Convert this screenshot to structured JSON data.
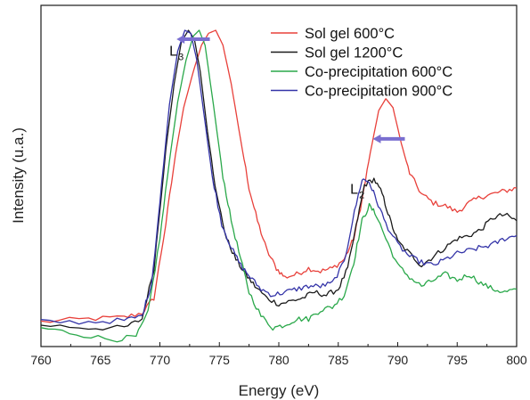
{
  "chart_data": {
    "type": "line",
    "title": "",
    "xlabel": "Energy (eV)",
    "ylabel": "Intensity (u.a.)",
    "xlim": [
      760,
      800
    ],
    "ylim": [
      0,
      1
    ],
    "xticks": [
      760,
      765,
      770,
      775,
      780,
      785,
      790,
      795,
      800
    ],
    "yticks": [],
    "grid": false,
    "legend_position": "top-right",
    "annotations": [
      {
        "label": "L",
        "subscript": "3",
        "x": 770.8,
        "y": 0.915
      },
      {
        "label": "L",
        "subscript": "2",
        "x": 786.0,
        "y": 0.45
      },
      {
        "type": "arrow",
        "direction": "left",
        "x_from": 774.2,
        "x_to": 771.4,
        "y": 0.97,
        "color": "#7a6fd0"
      },
      {
        "type": "arrow",
        "direction": "left",
        "x_from": 790.6,
        "x_to": 787.9,
        "y": 0.635,
        "color": "#7a6fd0"
      }
    ],
    "series": [
      {
        "name": "Sol gel 600°C",
        "color": "#e8403a",
        "x": [
          760,
          764,
          767,
          768.5,
          769.5,
          770.5,
          771.3,
          772,
          772.8,
          773.5,
          774.1,
          774.7,
          775.3,
          776,
          776.8,
          777.5,
          778.2,
          779,
          779.8,
          780.5,
          781.5,
          782.5,
          783.5,
          784.5,
          785.5,
          786.3,
          787,
          787.7,
          788.4,
          789,
          789.6,
          790.3,
          791,
          792,
          793,
          794,
          795,
          796,
          797,
          798,
          799,
          800
        ],
        "y": [
          0.02,
          0.03,
          0.035,
          0.05,
          0.1,
          0.35,
          0.58,
          0.74,
          0.86,
          0.95,
          0.99,
          1.0,
          0.95,
          0.82,
          0.63,
          0.47,
          0.36,
          0.26,
          0.2,
          0.17,
          0.18,
          0.2,
          0.19,
          0.2,
          0.23,
          0.3,
          0.43,
          0.59,
          0.73,
          0.77,
          0.74,
          0.62,
          0.52,
          0.45,
          0.42,
          0.41,
          0.39,
          0.42,
          0.44,
          0.45,
          0.46,
          0.47
        ]
      },
      {
        "name": "Sol gel 1200°C",
        "color": "#1a1a1a",
        "x": [
          760,
          764,
          767,
          768.5,
          769.5,
          770.5,
          771.2,
          771.8,
          772.4,
          772.9,
          773.4,
          774,
          774.8,
          775.6,
          776.4,
          777.2,
          778,
          779,
          780,
          781,
          782,
          783,
          784,
          785,
          785.8,
          786.5,
          787.2,
          788,
          788.7,
          789.3,
          790,
          791,
          792,
          793,
          794,
          795,
          796,
          797,
          798,
          799,
          800
        ],
        "y": [
          0.01,
          0.0,
          0.0,
          0.03,
          0.2,
          0.6,
          0.82,
          0.96,
          1.0,
          0.97,
          0.86,
          0.66,
          0.44,
          0.3,
          0.23,
          0.18,
          0.14,
          0.1,
          0.08,
          0.09,
          0.1,
          0.12,
          0.11,
          0.13,
          0.2,
          0.34,
          0.48,
          0.5,
          0.45,
          0.37,
          0.29,
          0.25,
          0.21,
          0.24,
          0.27,
          0.3,
          0.31,
          0.33,
          0.37,
          0.38,
          0.36
        ]
      },
      {
        "name": "Co-precipitation 600°C",
        "color": "#2aa84a",
        "x": [
          760,
          763,
          766,
          768,
          769,
          770,
          770.8,
          771.5,
          772.2,
          772.8,
          773.3,
          773.8,
          774.5,
          775.3,
          776,
          776.8,
          777.5,
          778.5,
          779.5,
          780.5,
          781.5,
          782.5,
          783.5,
          784.5,
          785.5,
          786.3,
          787,
          787.6,
          788.2,
          789,
          790,
          791,
          792,
          793,
          794,
          795,
          796,
          797,
          798,
          799,
          800
        ],
        "y": [
          0.0,
          -0.02,
          -0.04,
          -0.03,
          0.05,
          0.3,
          0.56,
          0.76,
          0.9,
          0.98,
          1.0,
          0.95,
          0.75,
          0.51,
          0.36,
          0.23,
          0.12,
          0.04,
          0.0,
          0.01,
          0.03,
          0.03,
          0.06,
          0.07,
          0.11,
          0.22,
          0.36,
          0.41,
          0.38,
          0.3,
          0.21,
          0.17,
          0.14,
          0.16,
          0.18,
          0.16,
          0.18,
          0.15,
          0.13,
          0.12,
          0.13
        ]
      },
      {
        "name": "Co-precipitation 900°C",
        "color": "#3434a8",
        "x": [
          760,
          764,
          767,
          768.5,
          769.3,
          770,
          770.8,
          771.5,
          772.1,
          772.6,
          773.1,
          773.7,
          774.4,
          775.2,
          776,
          776.8,
          777.6,
          778.5,
          779.5,
          780.5,
          781.5,
          782.5,
          783.5,
          784.5,
          785.5,
          786.2,
          787,
          787.6,
          788.2,
          789,
          790,
          791,
          792,
          793,
          794,
          795,
          796,
          797,
          798,
          799,
          800
        ],
        "y": [
          0.02,
          0.02,
          0.025,
          0.04,
          0.15,
          0.42,
          0.75,
          0.93,
          1.0,
          0.99,
          0.9,
          0.72,
          0.51,
          0.35,
          0.27,
          0.21,
          0.17,
          0.13,
          0.11,
          0.12,
          0.13,
          0.14,
          0.14,
          0.15,
          0.22,
          0.36,
          0.5,
          0.49,
          0.43,
          0.35,
          0.28,
          0.24,
          0.22,
          0.21,
          0.23,
          0.25,
          0.26,
          0.27,
          0.28,
          0.3,
          0.31
        ]
      }
    ]
  }
}
